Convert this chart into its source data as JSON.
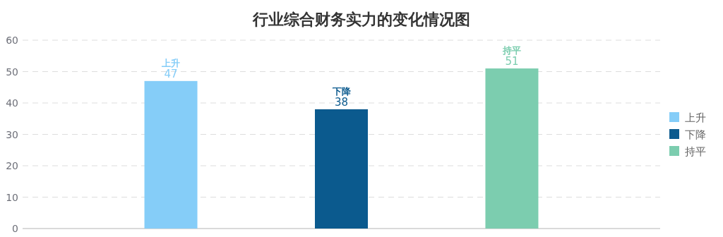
{
  "chart_data": {
    "type": "bar",
    "title": "行业综合财务实力的变化情况图",
    "categories": [
      null,
      null,
      null
    ],
    "series": [
      {
        "name": "上升",
        "color": "#85cdf8",
        "values": [
          47,
          null,
          null
        ]
      },
      {
        "name": "下降",
        "color": "#0b5a8e",
        "values": [
          null,
          38,
          null
        ]
      },
      {
        "name": "持平",
        "color": "#7ccdaf",
        "values": [
          null,
          null,
          51
        ]
      }
    ],
    "ylim": [
      0,
      60
    ],
    "yticks": [
      0,
      10,
      20,
      30,
      40,
      50,
      60
    ],
    "grid": "y",
    "legend": "right",
    "data_labels": true
  }
}
